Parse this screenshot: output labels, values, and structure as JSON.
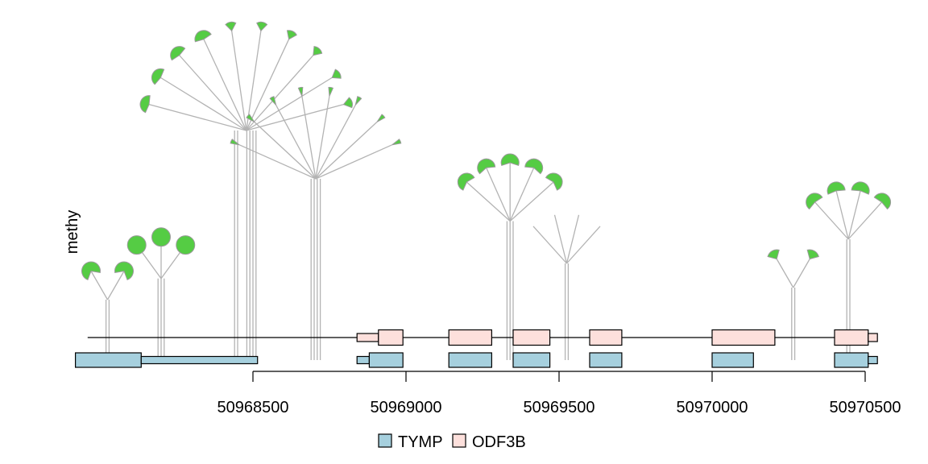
{
  "chart_data": {
    "type": "lollipop",
    "ylabel": "methy",
    "axis": {
      "range": [
        50968500,
        50970500
      ],
      "ticks": [
        50968500,
        50969000,
        50969500,
        50970000,
        50970500
      ],
      "tick_labels": [
        "50968500",
        "50969000",
        "50969500",
        "50970000",
        "50970500"
      ]
    },
    "legend": [
      {
        "name": "TYMP",
        "color": "#a6d0de"
      },
      {
        "name": "ODF3B",
        "color": "#fde0dc"
      }
    ],
    "colors": {
      "methylated": "#55cc44",
      "stem": "#b3b3b3"
    },
    "tracks": [
      {
        "gene": "ODF3B",
        "line": [
          50967960,
          50970540
        ],
        "exons": [
          {
            "start": 50968840,
            "end": 50968910,
            "utr": true
          },
          {
            "start": 50968910,
            "end": 50968990
          },
          {
            "start": 50969140,
            "end": 50969280
          },
          {
            "start": 50969350,
            "end": 50969470
          },
          {
            "start": 50969600,
            "end": 50969705
          },
          {
            "start": 50970000,
            "end": 50970205
          },
          {
            "start": 50970400,
            "end": 50970510
          },
          {
            "start": 50970510,
            "end": 50970540,
            "utr": true
          }
        ]
      },
      {
        "gene": "TYMP",
        "line": [
          50967920,
          50968515
        ],
        "exons": [
          {
            "start": 50967920,
            "end": 50968135,
            "gene": "TYMP"
          },
          {
            "start": 50968135,
            "end": 50968515,
            "gene": "TYMP",
            "utr": true
          },
          {
            "start": 50968840,
            "end": 50968880,
            "utr": true
          },
          {
            "start": 50968880,
            "end": 50968990
          },
          {
            "start": 50969140,
            "end": 50969280
          },
          {
            "start": 50969350,
            "end": 50969470
          },
          {
            "start": 50969600,
            "end": 50969705
          },
          {
            "start": 50970000,
            "end": 50970135
          },
          {
            "start": 50970400,
            "end": 50970510
          },
          {
            "start": 50970510,
            "end": 50970540,
            "utr": true
          }
        ]
      }
    ],
    "clusters": [
      {
        "positions": [
          50968020,
          50968030
        ],
        "stem_height": 1.0,
        "markers": [
          0.72,
          0.72
        ]
      },
      {
        "positions": [
          50968190,
          50968200,
          50968210
        ],
        "stem_height": 1.35,
        "markers": [
          1.0,
          1.0,
          1.0
        ]
      },
      {
        "positions": [
          50968440,
          50968450,
          50968480,
          50968490,
          50968500,
          50968510
        ],
        "stem_height": 3.8,
        "markers": [
          0.45,
          0.45,
          0.45,
          0.45,
          0.2,
          0.2,
          0.2,
          0.2,
          0.2,
          0.2
        ]
      },
      {
        "positions": [
          50968690,
          50968700,
          50968710,
          50968720
        ],
        "stem_height": 3.0,
        "markers": [
          0.08,
          0.08,
          0.08,
          0.08,
          0.08,
          0.08,
          0.08,
          0.08
        ]
      },
      {
        "positions": [
          50969330,
          50969340,
          50969350
        ],
        "stem_height": 2.3,
        "markers": [
          0.6,
          0.6,
          0.6,
          0.6,
          0.6
        ]
      },
      {
        "positions": [
          50969520,
          50969530
        ],
        "stem_height": 1.6,
        "markers": [
          0.0,
          0.0,
          0.0,
          0.0
        ]
      },
      {
        "positions": [
          50970260,
          50970270
        ],
        "stem_height": 1.2,
        "markers": [
          0.25,
          0.25
        ]
      },
      {
        "positions": [
          50970440,
          50970450
        ],
        "stem_height": 2.0,
        "markers": [
          0.55,
          0.55,
          0.55,
          0.55
        ]
      }
    ]
  }
}
